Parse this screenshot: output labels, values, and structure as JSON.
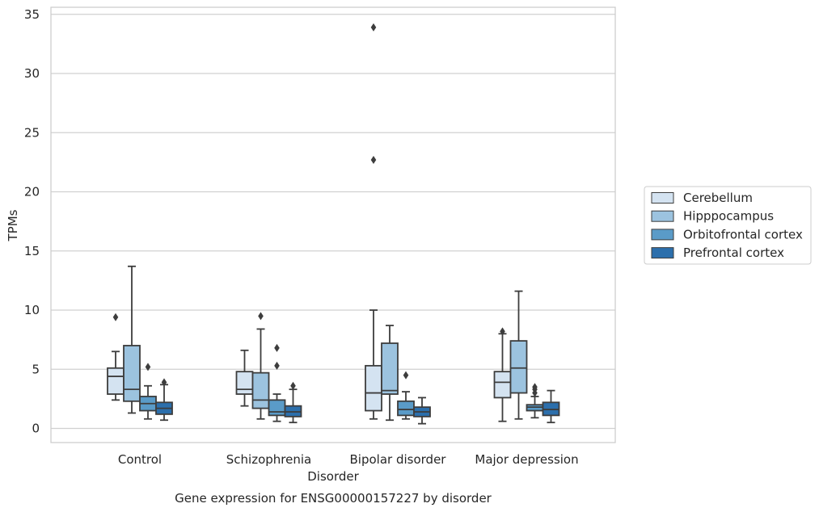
{
  "chart_data": {
    "type": "box",
    "caption": "Gene expression for ENSG00000157227 by disorder",
    "xlabel": "Disorder",
    "ylabel": "TPMs",
    "ylim": [
      -1.2,
      35.6
    ],
    "yticks": [
      0,
      5,
      10,
      15,
      20,
      25,
      30,
      35
    ],
    "grid": "horizontal",
    "legend_position": "right-center",
    "categories": [
      "Control",
      "Schizophrenia",
      "Bipolar disorder",
      "Major depression"
    ],
    "series": [
      {
        "name": "Cerebellum",
        "color": "#d4e3f1",
        "boxes": [
          {
            "whislo": 2.4,
            "q1": 2.9,
            "med": 4.4,
            "q3": 5.1,
            "whishi": 6.5,
            "fliers": [
              9.4
            ]
          },
          {
            "whislo": 1.9,
            "q1": 2.9,
            "med": 3.3,
            "q3": 4.8,
            "whishi": 6.6,
            "fliers": []
          },
          {
            "whislo": 0.8,
            "q1": 1.5,
            "med": 3.0,
            "q3": 5.3,
            "whishi": 10.0,
            "fliers": [
              33.9,
              22.7
            ]
          },
          {
            "whislo": 0.6,
            "q1": 2.6,
            "med": 3.9,
            "q3": 4.8,
            "whishi": 8.0,
            "fliers": [
              8.2
            ]
          }
        ]
      },
      {
        "name": "Hipppocampus",
        "color": "#9cc3df",
        "boxes": [
          {
            "whislo": 1.3,
            "q1": 2.3,
            "med": 3.3,
            "q3": 7.0,
            "whishi": 13.7,
            "fliers": []
          },
          {
            "whislo": 0.8,
            "q1": 1.7,
            "med": 2.4,
            "q3": 4.7,
            "whishi": 8.4,
            "fliers": [
              9.5
            ]
          },
          {
            "whislo": 0.7,
            "q1": 2.9,
            "med": 3.2,
            "q3": 7.2,
            "whishi": 8.7,
            "fliers": []
          },
          {
            "whislo": 0.8,
            "q1": 3.0,
            "med": 5.1,
            "q3": 7.4,
            "whishi": 11.6,
            "fliers": []
          }
        ]
      },
      {
        "name": "Orbitofrontal cortex",
        "color": "#5a9bc8",
        "boxes": [
          {
            "whislo": 0.8,
            "q1": 1.5,
            "med": 2.1,
            "q3": 2.7,
            "whishi": 3.6,
            "fliers": [
              5.2
            ]
          },
          {
            "whislo": 0.6,
            "q1": 1.1,
            "med": 1.4,
            "q3": 2.4,
            "whishi": 2.9,
            "fliers": [
              6.8,
              5.3
            ]
          },
          {
            "whislo": 0.8,
            "q1": 1.1,
            "med": 1.6,
            "q3": 2.3,
            "whishi": 3.1,
            "fliers": [
              4.5
            ]
          },
          {
            "whislo": 0.9,
            "q1": 1.5,
            "med": 1.8,
            "q3": 2.0,
            "whishi": 2.7,
            "fliers": [
              3.5,
              3.3,
              3.0
            ]
          }
        ]
      },
      {
        "name": "Prefrontal cortex",
        "color": "#2c6fac",
        "boxes": [
          {
            "whislo": 0.7,
            "q1": 1.2,
            "med": 1.7,
            "q3": 2.2,
            "whishi": 3.7,
            "fliers": [
              3.9
            ]
          },
          {
            "whislo": 0.5,
            "q1": 1.0,
            "med": 1.4,
            "q3": 1.9,
            "whishi": 3.3,
            "fliers": [
              3.6
            ]
          },
          {
            "whislo": 0.4,
            "q1": 1.0,
            "med": 1.4,
            "q3": 1.8,
            "whishi": 2.6,
            "fliers": []
          },
          {
            "whislo": 0.5,
            "q1": 1.1,
            "med": 1.6,
            "q3": 2.2,
            "whishi": 3.2,
            "fliers": []
          }
        ]
      }
    ]
  }
}
